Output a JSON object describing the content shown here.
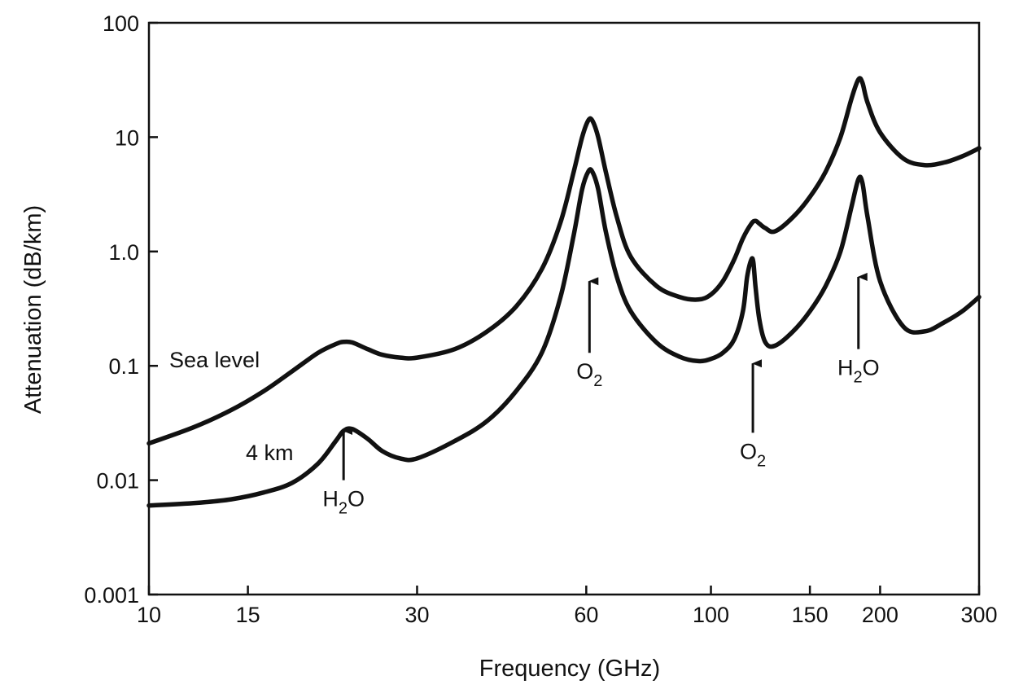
{
  "chart_data": {
    "type": "line",
    "xlabel": "Frequency  (GHz)",
    "ylabel": "Attenuation (dB/km)",
    "x_scale": "log",
    "y_scale": "log",
    "xlim": [
      10,
      300
    ],
    "ylim": [
      0.001,
      100
    ],
    "x_ticks": [
      10,
      15,
      30,
      60,
      100,
      150,
      200,
      300
    ],
    "x_tick_labels": [
      "10",
      "15",
      "30",
      "60",
      "100",
      "150",
      "200",
      "300"
    ],
    "y_ticks": [
      0.001,
      0.01,
      0.1,
      1,
      10,
      100
    ],
    "y_tick_labels": [
      "0.001",
      "0.01",
      "0.1",
      "1.0",
      "10",
      "100"
    ],
    "grid": false,
    "series": [
      {
        "name": "Sea level",
        "x": [
          10,
          12,
          14,
          16,
          18,
          20,
          21.5,
          22.2,
          23,
          24.5,
          26,
          28,
          30,
          35,
          40,
          45,
          50,
          54,
          57,
          59,
          60.5,
          61.5,
          63,
          65,
          68,
          72,
          80,
          88,
          95,
          100,
          105,
          110,
          114,
          118,
          120,
          122,
          125,
          130,
          140,
          150,
          160,
          170,
          178,
          183,
          186,
          190,
          200,
          220,
          240,
          260,
          280,
          300
        ],
        "y": [
          0.021,
          0.029,
          0.041,
          0.06,
          0.09,
          0.13,
          0.155,
          0.162,
          0.16,
          0.14,
          0.125,
          0.118,
          0.118,
          0.14,
          0.2,
          0.33,
          0.7,
          1.8,
          5.0,
          10.0,
          14.0,
          14.0,
          10.0,
          5.0,
          2.0,
          0.9,
          0.5,
          0.4,
          0.38,
          0.42,
          0.55,
          0.85,
          1.3,
          1.75,
          1.85,
          1.75,
          1.6,
          1.5,
          2.0,
          3.0,
          5.0,
          10.0,
          22.0,
          32.0,
          30.0,
          20.0,
          11.0,
          6.5,
          5.7,
          6.0,
          6.8,
          8.0
        ]
      },
      {
        "name": "4 km",
        "x": [
          10,
          12,
          14,
          16,
          18,
          20,
          21.5,
          22.2,
          23,
          24.5,
          26,
          28,
          30,
          35,
          40,
          45,
          50,
          54,
          57,
          59,
          60.5,
          61.5,
          63,
          65,
          68,
          72,
          80,
          88,
          95,
          100,
          105,
          110,
          114,
          116,
          118,
          119,
          120,
          122,
          125,
          130,
          140,
          150,
          160,
          170,
          178,
          183,
          186,
          190,
          200,
          220,
          240,
          260,
          280,
          300
        ],
        "y": [
          0.006,
          0.0063,
          0.0068,
          0.0078,
          0.0095,
          0.014,
          0.022,
          0.027,
          0.028,
          0.023,
          0.018,
          0.0155,
          0.0155,
          0.022,
          0.033,
          0.06,
          0.13,
          0.4,
          1.4,
          3.5,
          5.0,
          5.0,
          3.5,
          1.5,
          0.6,
          0.3,
          0.16,
          0.12,
          0.11,
          0.115,
          0.13,
          0.17,
          0.3,
          0.6,
          0.85,
          0.8,
          0.5,
          0.25,
          0.16,
          0.15,
          0.2,
          0.3,
          0.5,
          1.0,
          2.5,
          4.3,
          4.0,
          2.0,
          0.55,
          0.22,
          0.2,
          0.24,
          0.3,
          0.4
        ]
      }
    ],
    "annotations": [
      {
        "id": "h2o-22",
        "type": "arrow-label",
        "x": 22.2,
        "y_tip": 0.027,
        "y_tail": 0.01,
        "species": "H",
        "sub": "2",
        "suffix": "O"
      },
      {
        "id": "o2-60",
        "type": "arrow-label",
        "x": 60.8,
        "y_tip": 0.55,
        "y_tail": 0.13,
        "species": "O",
        "sub": "2",
        "suffix": ""
      },
      {
        "id": "o2-119",
        "type": "arrow-label",
        "x": 118.75,
        "y_tip": 0.105,
        "y_tail": 0.026,
        "species": "O",
        "sub": "2",
        "suffix": ""
      },
      {
        "id": "h2o-183",
        "type": "arrow-label",
        "x": 183,
        "y_tip": 0.6,
        "y_tail": 0.14,
        "species": "H",
        "sub": "2",
        "suffix": "O"
      }
    ],
    "series_labels": [
      {
        "series": "Sea level",
        "text": "Sea level"
      },
      {
        "series": "4 km",
        "text": "4 km"
      }
    ]
  }
}
